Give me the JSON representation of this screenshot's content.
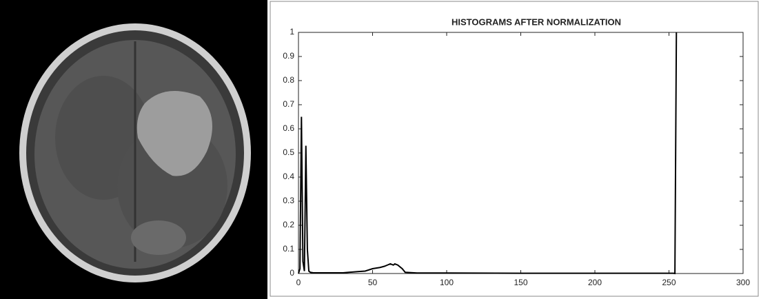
{
  "chart_data": {
    "type": "line",
    "title": "HISTOGRAMS AFTER NORMALIZATION",
    "x": [
      0,
      1,
      2,
      3,
      4,
      5,
      6,
      7,
      8,
      10,
      20,
      30,
      40,
      45,
      50,
      55,
      58,
      60,
      62,
      64,
      65,
      67,
      70,
      72,
      80,
      100,
      150,
      200,
      253,
      254,
      255
    ],
    "series": [
      {
        "color": "#000000",
        "values": [
          0,
          0.02,
          0.65,
          0.05,
          0.01,
          0.53,
          0.1,
          0.01,
          0.005,
          0.003,
          0.003,
          0.003,
          0.008,
          0.01,
          0.02,
          0.025,
          0.03,
          0.035,
          0.04,
          0.035,
          0.04,
          0.035,
          0.02,
          0.005,
          0.002,
          0.002,
          0.001,
          0.001,
          0.001,
          0,
          1
        ]
      }
    ],
    "xlim": [
      0,
      300
    ],
    "xticks": [
      0,
      50,
      100,
      150,
      200,
      250,
      300
    ],
    "ylim": [
      0,
      1
    ],
    "yticks": [
      0,
      0.1,
      0.2,
      0.3,
      0.4,
      0.5,
      0.6,
      0.7,
      0.8,
      0.9,
      1
    ]
  }
}
